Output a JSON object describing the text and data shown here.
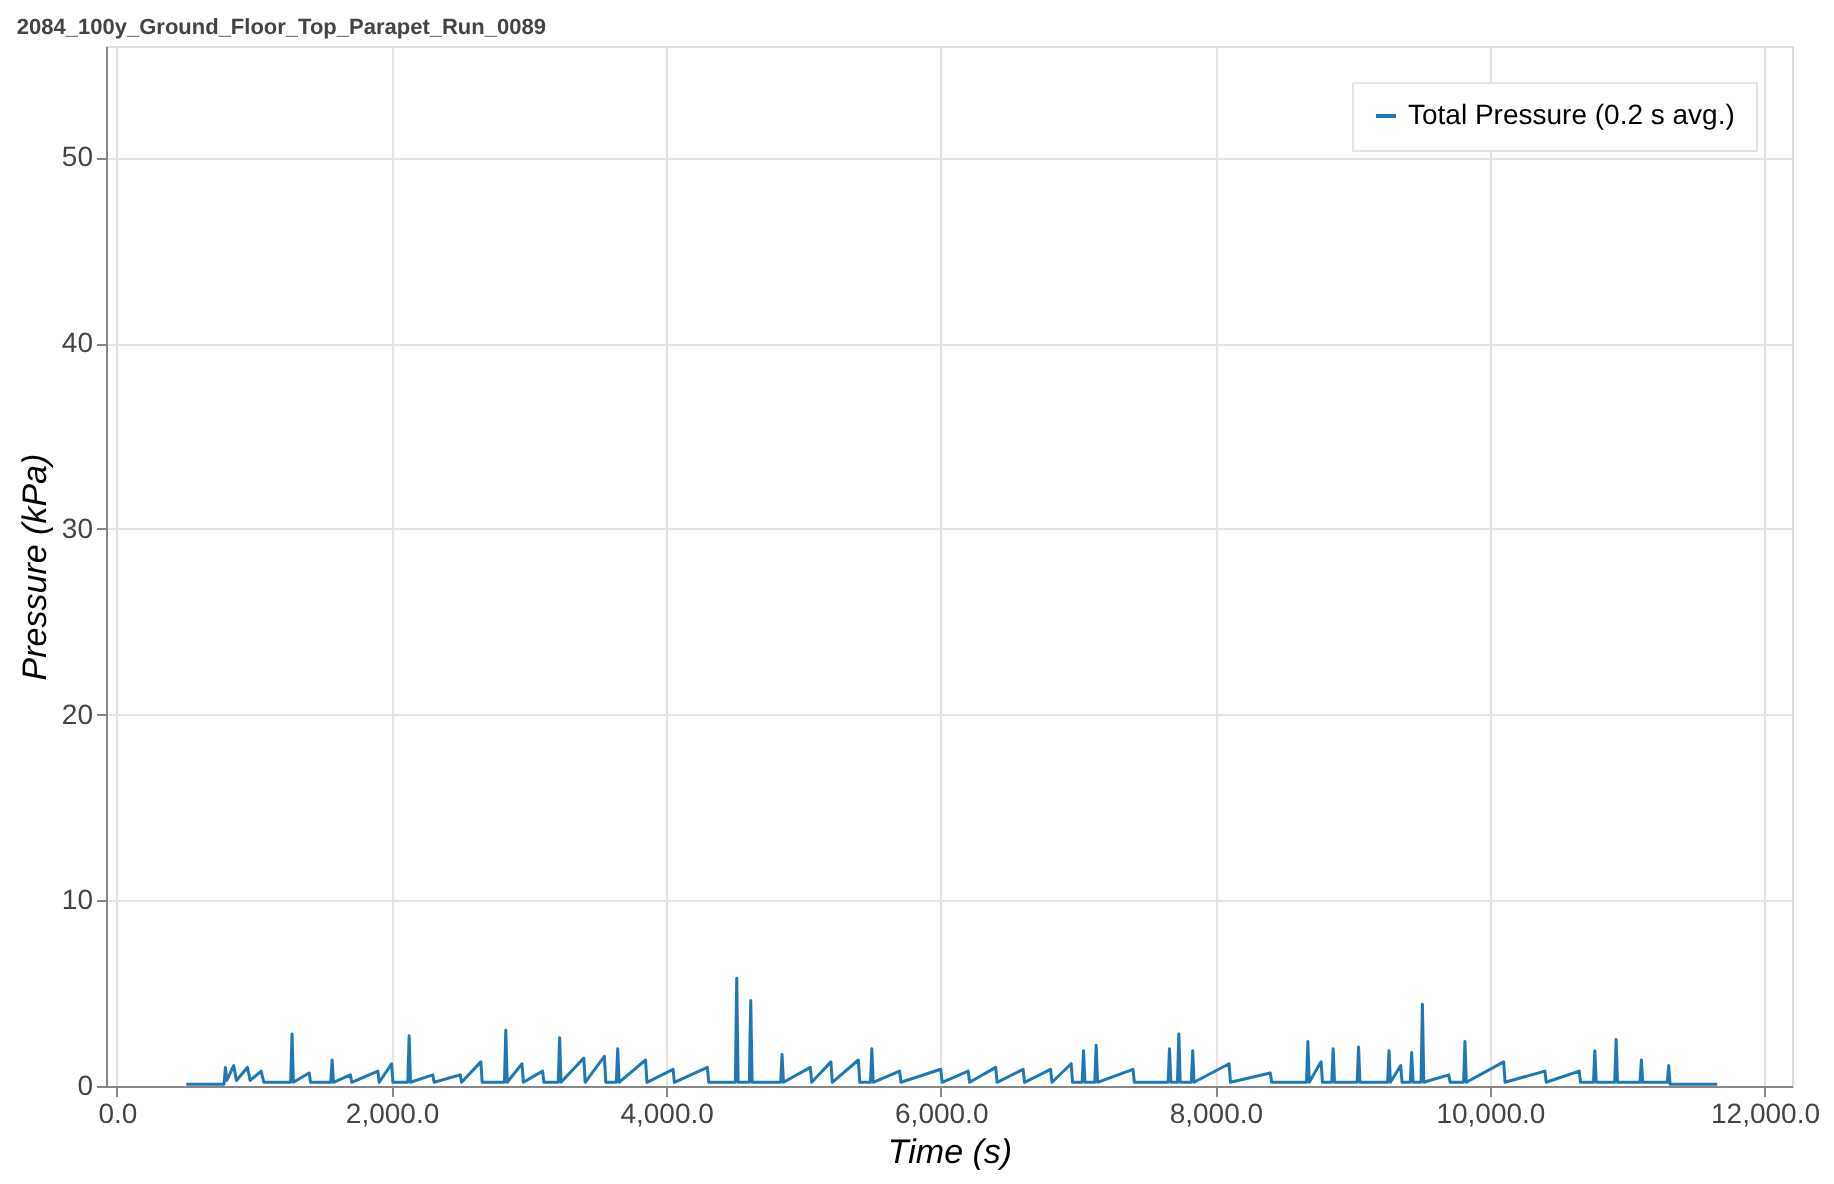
{
  "chart_data": {
    "type": "line",
    "title": "2084_100y_Ground_Floor_Top_Parapet_Run_0089",
    "xlabel": "Time (s)",
    "ylabel": "Pressure (kPa)",
    "xlim": [
      -80,
      12200
    ],
    "ylim": [
      0,
      56
    ],
    "xticks": [
      {
        "value": 0,
        "label": "0.0"
      },
      {
        "value": 2000,
        "label": "2,000.0"
      },
      {
        "value": 4000,
        "label": "4,000.0"
      },
      {
        "value": 6000,
        "label": "6,000.0"
      },
      {
        "value": 8000,
        "label": "8,000.0"
      },
      {
        "value": 10000,
        "label": "10,000.0"
      },
      {
        "value": 12000,
        "label": "12,000.0"
      }
    ],
    "yticks": [
      0,
      10,
      20,
      30,
      40,
      50
    ],
    "grid": true,
    "legend": "top right",
    "series": [
      {
        "name": "Total Pressure (0.2 s avg.)",
        "color": "#1f77b4",
        "x": [
          505,
          780,
          790,
          800,
          850,
          870,
          950,
          970,
          1050,
          1070,
          1265,
          1275,
          1285,
          1400,
          1410,
          1557,
          1567,
          1577,
          1700,
          1710,
          1900,
          1910,
          2000,
          2010,
          2118,
          2128,
          2138,
          2300,
          2310,
          2500,
          2510,
          2650,
          2660,
          2822,
          2832,
          2842,
          2950,
          2960,
          3100,
          3110,
          3214,
          3224,
          3234,
          3400,
          3410,
          3550,
          3560,
          3637,
          3647,
          3657,
          3850,
          3860,
          4050,
          4060,
          4300,
          4310,
          4504,
          4514,
          4524,
          4606,
          4612,
          4616,
          4626,
          4834,
          4844,
          4854,
          5050,
          5060,
          5200,
          5210,
          5400,
          5410,
          5488,
          5498,
          5508,
          5700,
          5710,
          6000,
          6010,
          6200,
          6210,
          6400,
          6410,
          6600,
          6610,
          6800,
          6810,
          6950,
          6960,
          7030,
          7040,
          7050,
          7122,
          7132,
          7142,
          7400,
          7410,
          7656,
          7666,
          7676,
          7724,
          7734,
          7744,
          7825,
          7835,
          7845,
          8100,
          8110,
          8400,
          8410,
          8664,
          8674,
          8684,
          8770,
          8780,
          8848,
          8858,
          8868,
          9033,
          9043,
          9053,
          9255,
          9265,
          9275,
          9350,
          9360,
          9420,
          9430,
          9440,
          9498,
          9508,
          9518,
          9700,
          9710,
          9808,
          9818,
          9828,
          10100,
          10110,
          10400,
          10410,
          10650,
          10660,
          10754,
          10764,
          10774,
          10909,
          10919,
          10929,
          11093,
          11103,
          11113,
          11292,
          11302,
          11312,
          11655
        ],
        "values": [
          0.1,
          0.1,
          1.0,
          0.3,
          1.1,
          0.3,
          1.0,
          0.3,
          0.8,
          0.2,
          0.2,
          2.8,
          0.2,
          0.7,
          0.2,
          0.2,
          1.4,
          0.2,
          0.6,
          0.2,
          0.8,
          0.2,
          1.2,
          0.2,
          0.2,
          2.7,
          0.2,
          0.6,
          0.2,
          0.6,
          0.2,
          1.3,
          0.2,
          0.2,
          3.0,
          0.2,
          1.2,
          0.2,
          0.8,
          0.2,
          0.2,
          2.6,
          0.2,
          1.5,
          0.2,
          1.6,
          0.2,
          0.2,
          2.0,
          0.2,
          1.4,
          0.2,
          0.9,
          0.2,
          1.0,
          0.2,
          0.2,
          5.8,
          0.2,
          0.2,
          3.0,
          4.6,
          0.2,
          0.2,
          1.7,
          0.2,
          1.0,
          0.2,
          1.3,
          0.2,
          1.4,
          0.2,
          0.2,
          2.0,
          0.2,
          0.8,
          0.2,
          0.9,
          0.2,
          0.8,
          0.2,
          1.0,
          0.2,
          0.9,
          0.2,
          0.9,
          0.2,
          1.2,
          0.2,
          0.2,
          1.9,
          0.2,
          0.2,
          2.2,
          0.2,
          0.9,
          0.2,
          0.2,
          2.0,
          0.2,
          0.2,
          2.8,
          0.2,
          0.2,
          1.9,
          0.2,
          1.2,
          0.2,
          0.7,
          0.2,
          0.2,
          2.4,
          0.2,
          1.3,
          0.2,
          0.2,
          2.0,
          0.2,
          0.2,
          2.1,
          0.2,
          0.2,
          1.9,
          0.2,
          1.1,
          0.2,
          0.2,
          1.8,
          0.2,
          0.2,
          4.4,
          0.2,
          0.6,
          0.2,
          0.2,
          2.4,
          0.2,
          1.3,
          0.2,
          0.8,
          0.2,
          0.8,
          0.2,
          0.2,
          1.9,
          0.2,
          0.2,
          2.5,
          0.2,
          0.2,
          1.4,
          0.2,
          0.2,
          1.1,
          0.1,
          0.1
        ]
      }
    ]
  }
}
